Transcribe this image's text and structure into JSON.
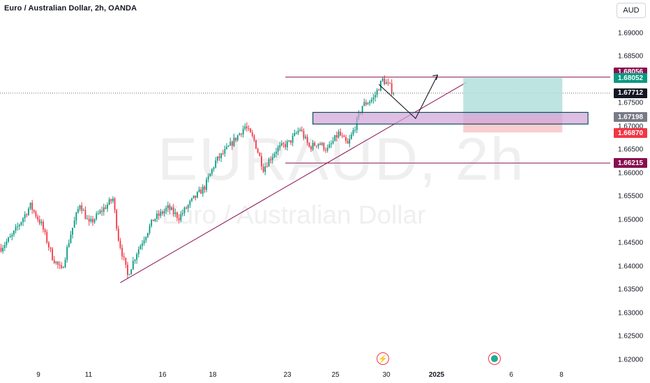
{
  "header": {
    "title": "Euro / Australian Dollar, 2h, OANDA"
  },
  "toolbar": {
    "currency_label": "AUD"
  },
  "watermark": {
    "symbol": "EURAUD, 2h",
    "name": "Euro / Australian Dollar"
  },
  "price_axis": {
    "ticks": [
      "1.69000",
      "1.68500",
      "1.68000",
      "1.67500",
      "1.67000",
      "1.66500",
      "1.66000",
      "1.65500",
      "1.65000",
      "1.64500",
      "1.64000",
      "1.63500",
      "1.63000",
      "1.62500",
      "1.62000"
    ],
    "labels": [
      {
        "name": "resistance-label",
        "text": "1.68056",
        "color": "#880e4f"
      },
      {
        "name": "take-profit-label",
        "text": "1.68052",
        "color": "#089981"
      },
      {
        "name": "last-price-label",
        "text": "1.67712",
        "color": "#131722"
      },
      {
        "name": "entry-price-label",
        "text": "1.67198",
        "color": "#787b86"
      },
      {
        "name": "stop-loss-label",
        "text": "1.66870",
        "color": "#f23645"
      },
      {
        "name": "support-label",
        "text": "1.66215",
        "color": "#880e4f"
      }
    ]
  },
  "time_axis": {
    "ticks": [
      {
        "text": "9",
        "bold": false
      },
      {
        "text": "11",
        "bold": false
      },
      {
        "text": "16",
        "bold": false
      },
      {
        "text": "18",
        "bold": false
      },
      {
        "text": "23",
        "bold": false
      },
      {
        "text": "25",
        "bold": false
      },
      {
        "text": "30",
        "bold": false
      },
      {
        "text": "2025",
        "bold": true
      },
      {
        "text": "6",
        "bold": false
      },
      {
        "text": "8",
        "bold": false
      }
    ]
  },
  "events": [
    {
      "name": "flash-event-icon",
      "glyph": "⚡"
    },
    {
      "name": "economic-event-icon",
      "glyph": ""
    }
  ],
  "colors": {
    "up": "#089981",
    "down": "#f23645",
    "line": "#880e4f",
    "zone_fill": "#d1a3d8",
    "zone_border": "#0b4f55",
    "profit_fill": "#b2dfdb",
    "loss_fill": "#f7c5c9"
  },
  "chart_data": {
    "type": "candlestick",
    "symbol": "EURAUD",
    "interval": "2h",
    "ylim": [
      1.6185,
      1.6935
    ],
    "levels": {
      "resistance": 1.68056,
      "take_profit": 1.68052,
      "last_price": 1.67712,
      "entry": 1.67198,
      "stop_loss": 1.6687,
      "support": 1.66215
    },
    "anchors": [
      [
        0,
        1.644
      ],
      [
        6,
        1.6465
      ],
      [
        16,
        1.653
      ],
      [
        22,
        1.649
      ],
      [
        28,
        1.642
      ],
      [
        33,
        1.639
      ],
      [
        38,
        1.647
      ],
      [
        43,
        1.6535
      ],
      [
        48,
        1.649
      ],
      [
        55,
        1.652
      ],
      [
        61,
        1.6545
      ],
      [
        64,
        1.646
      ],
      [
        69,
        1.638
      ],
      [
        74,
        1.643
      ],
      [
        83,
        1.65
      ],
      [
        91,
        1.6525
      ],
      [
        97,
        1.6505
      ],
      [
        105,
        1.6545
      ],
      [
        111,
        1.657
      ],
      [
        117,
        1.6625
      ],
      [
        123,
        1.665
      ],
      [
        127,
        1.667
      ],
      [
        133,
        1.67
      ],
      [
        138,
        1.667
      ],
      [
        143,
        1.661
      ],
      [
        150,
        1.665
      ],
      [
        157,
        1.6665
      ],
      [
        163,
        1.6695
      ],
      [
        168,
        1.6655
      ],
      [
        173,
        1.6665
      ],
      [
        178,
        1.665
      ],
      [
        184,
        1.6685
      ],
      [
        189,
        1.666
      ],
      [
        193,
        1.67
      ],
      [
        197,
        1.6745
      ],
      [
        203,
        1.676
      ],
      [
        208,
        1.68
      ],
      [
        212,
        1.6785
      ],
      [
        214,
        1.6771
      ]
    ],
    "trendline": {
      "from": [
        65,
        1.6365
      ],
      "to": [
        254,
        1.6795
      ]
    },
    "zone": {
      "from": 170,
      "to": 320,
      "top": 1.673,
      "bottom": 1.6705
    },
    "projection": [
      [
        206,
        1.679
      ],
      [
        226,
        1.6717
      ],
      [
        238,
        1.681
      ]
    ],
    "position": {
      "from": 252,
      "to": 306,
      "take_profit": 1.68052,
      "entry": 1.67198,
      "stop_loss": 1.6687
    }
  }
}
